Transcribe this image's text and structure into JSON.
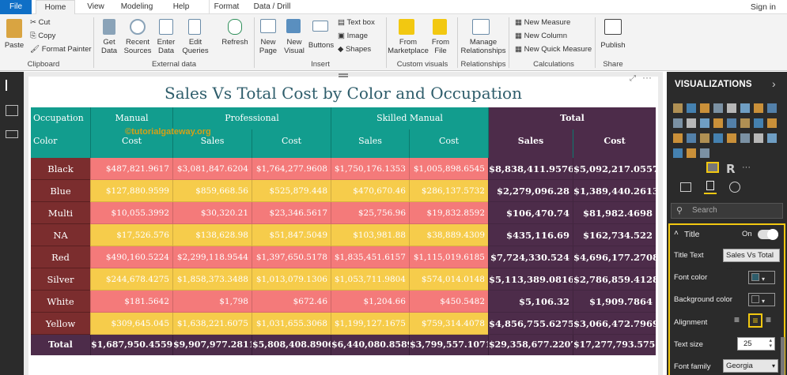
{
  "ribbon_tabs": [
    "File",
    "Home",
    "View",
    "Modeling",
    "Help",
    "Format",
    "Data / Drill"
  ],
  "signin": "Sign in",
  "clipboard": {
    "paste": "Paste",
    "cut": "Cut",
    "copy": "Copy",
    "format_painter": "Format Painter",
    "label": "Clipboard"
  },
  "external": {
    "get_data": "Get\nData",
    "recent": "Recent\nSources",
    "enter": "Enter\nData",
    "edit": "Edit\nQueries",
    "refresh": "Refresh",
    "label": "External data"
  },
  "insert": {
    "new_page": "New\nPage",
    "new_visual": "New\nVisual",
    "buttons": "Buttons",
    "text_box": "Text box",
    "image": "Image",
    "shapes": "Shapes",
    "label": "Insert"
  },
  "custom": {
    "marketplace": "From\nMarketplace",
    "file": "From\nFile",
    "label": "Custom visuals"
  },
  "relationships": {
    "manage": "Manage\nRelationships",
    "label": "Relationships"
  },
  "calculations": {
    "new_measure": "New Measure",
    "new_column": "New Column",
    "new_quick": "New Quick Measure",
    "label": "Calculations"
  },
  "share": {
    "publish": "Publish",
    "label": "Share"
  },
  "visual": {
    "title": "Sales Vs Total Cost by Color and Occupation",
    "watermark": "©tutorialgateway.org",
    "table": {
      "row_header_1": "Occupation",
      "row_header_2": "Color",
      "groups": [
        "Manual",
        "Professional",
        "Skilled Manual",
        "Total"
      ],
      "columns": [
        "Cost",
        "Sales",
        "Cost",
        "Sales",
        "Cost",
        "Sales",
        "Cost"
      ],
      "rows": [
        {
          "label": "Black",
          "values": [
            "$487,821.9617",
            "$3,081,847.6204",
            "$1,764,277.9608",
            "$1,750,176.1353",
            "$1,005,898.6545",
            "$8,838,411.9576",
            "$5,092,217.0557"
          ]
        },
        {
          "label": "Blue",
          "values": [
            "$127,880.9599",
            "$859,668.56",
            "$525,879.448",
            "$470,670.46",
            "$286,137.5732",
            "$2,279,096.28",
            "$1,389,440.2613"
          ]
        },
        {
          "label": "Multi",
          "values": [
            "$10,055.3992",
            "$30,320.21",
            "$23,346.5617",
            "$25,756.96",
            "$19,832.8592",
            "$106,470.74",
            "$81,982.4698"
          ]
        },
        {
          "label": "NA",
          "values": [
            "$17,526.576",
            "$138,628.98",
            "$51,847.5049",
            "$103,981.88",
            "$38,889.4309",
            "$435,116.69",
            "$162,734.522"
          ]
        },
        {
          "label": "Red",
          "values": [
            "$490,160.5224",
            "$2,299,118.9544",
            "$1,397,650.5178",
            "$1,835,451.6157",
            "$1,115,019.6185",
            "$7,724,330.524",
            "$4,696,177.2708"
          ]
        },
        {
          "label": "Silver",
          "values": [
            "$244,678.4275",
            "$1,858,373.3488",
            "$1,013,079.1306",
            "$1,053,711.9804",
            "$574,014.0148",
            "$5,113,389.0816",
            "$2,786,859.4128"
          ]
        },
        {
          "label": "White",
          "values": [
            "$181.5642",
            "$1,798",
            "$672.46",
            "$1,204.66",
            "$450.5482",
            "$5,106.32",
            "$1,909.7864"
          ]
        },
        {
          "label": "Yellow",
          "values": [
            "$309,645.045",
            "$1,638,221.6075",
            "$1,031,655.3068",
            "$1,199,127.1675",
            "$759,314.4078",
            "$4,856,755.6275",
            "$3,066,472.7969"
          ]
        }
      ],
      "total": {
        "label": "Total",
        "values": [
          "$1,687,950.4559",
          "$9,907,977.2811",
          "$5,808,408.8906",
          "$6,440,080.8589",
          "$3,799,557.1071",
          "$29,358,677.2207",
          "$17,277,793.5757"
        ]
      }
    }
  },
  "pane": {
    "title": "VISUALIZATIONS",
    "search_placeholder": "Search",
    "section": "Title",
    "toggle": "On",
    "title_text_label": "Title Text",
    "title_text_value": "Sales Vs Total ...",
    "font_color_label": "Font color",
    "bg_color_label": "Background color",
    "alignment_label": "Alignment",
    "text_size_label": "Text size",
    "text_size_value": "25",
    "font_family_label": "Font family",
    "font_family_value": "Georgia",
    "r_icon": "R"
  },
  "colors": {
    "header": "#129d8e",
    "total": "#4d2c4a",
    "row_label": "#7b2d2e",
    "pink": "#f47a7a",
    "yellow": "#f6cc4b",
    "accent": "#f2c811"
  }
}
